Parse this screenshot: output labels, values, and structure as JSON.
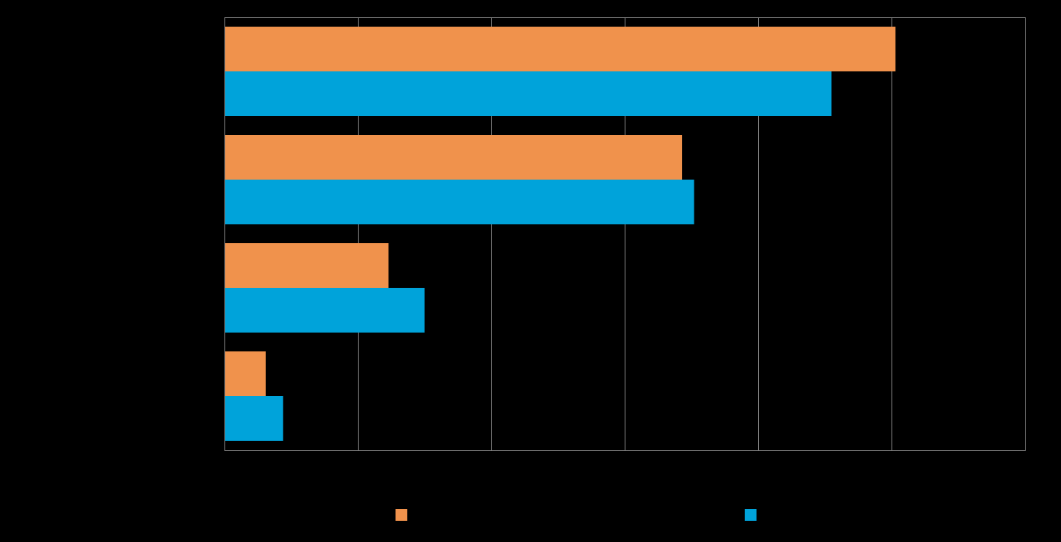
{
  "chart_data": {
    "type": "bar",
    "orientation": "horizontal",
    "categories": [
      "",
      "",
      "",
      ""
    ],
    "series": [
      {
        "values": [
          50.3,
          34.3,
          12.3,
          3.1
        ],
        "color": "#F0924C"
      },
      {
        "values": [
          45.5,
          35.2,
          15.0,
          4.4
        ],
        "color": "#00A3DA"
      }
    ],
    "xlim": [
      0,
      60
    ],
    "x_gridlines": [
      0,
      10,
      20,
      30,
      40,
      50,
      60
    ],
    "grid": true,
    "legend": "bottom",
    "title": "",
    "xlabel": "",
    "ylabel": ""
  },
  "colors": {
    "background": "#000000",
    "grid": "#7F7F7F"
  }
}
